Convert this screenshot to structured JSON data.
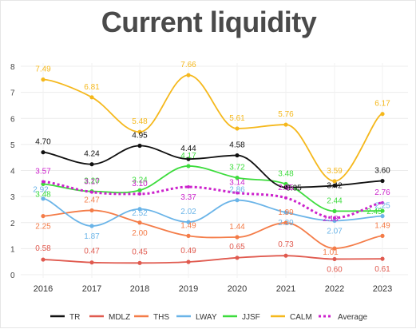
{
  "chart_data": {
    "type": "line",
    "title": "Current liquidity",
    "x": [
      "2016",
      "2017",
      "2018",
      "2019",
      "2020",
      "2021",
      "2022",
      "2023"
    ],
    "y_ticks": [
      "0",
      "1",
      "2",
      "3",
      "4",
      "5",
      "6",
      "7",
      "8"
    ],
    "ylim": [
      0,
      8
    ],
    "grid": true,
    "legend_position": "bottom",
    "series": [
      {
        "name": "TR",
        "color": "#111111",
        "style": "solid",
        "show_labels": true,
        "values": [
          4.7,
          4.24,
          4.95,
          4.44,
          4.58,
          3.35,
          3.42,
          3.6
        ],
        "labels": [
          "4.70",
          "4.24",
          "4.95",
          "4.44",
          "4.58",
          "3.35",
          "3.42",
          "3.60"
        ]
      },
      {
        "name": "MDLZ",
        "color": "#e05a4f",
        "style": "solid",
        "show_labels": true,
        "values": [
          0.58,
          0.47,
          0.45,
          0.49,
          0.65,
          0.73,
          0.6,
          0.61
        ],
        "labels": [
          "0.58",
          "0.47",
          "0.45",
          "0.49",
          "0.65",
          "0.73",
          "0.60",
          "0.61"
        ]
      },
      {
        "name": "THS",
        "color": "#f47c48",
        "style": "solid",
        "show_labels": true,
        "values": [
          2.25,
          2.47,
          2.0,
          1.49,
          1.44,
          1.99,
          1.01,
          1.49
        ],
        "labels": [
          "2.25",
          "2.47",
          "2.00",
          "1.49",
          "1.44",
          "1.99",
          "1.01",
          "1.49"
        ]
      },
      {
        "name": "LWAY",
        "color": "#6ab4e8",
        "style": "solid",
        "show_labels": true,
        "values": [
          2.92,
          1.87,
          2.52,
          2.02,
          2.86,
          2.39,
          2.07,
          2.25
        ],
        "labels": [
          "2.92",
          "1.87",
          "2.52",
          "2.02",
          "2.86",
          "2.39",
          "2.07",
          "2.25"
        ]
      },
      {
        "name": "JJSF",
        "color": "#3ddc3d",
        "style": "solid",
        "show_labels": true,
        "values": [
          3.48,
          3.2,
          3.24,
          4.17,
          3.72,
          3.48,
          2.44,
          2.45
        ],
        "labels": [
          "3.48",
          "3.20",
          "3.24",
          "4.17",
          "3.72",
          "3.48",
          "2.44",
          "2.45"
        ]
      },
      {
        "name": "CALM",
        "color": "#f5b81c",
        "style": "solid",
        "show_labels": true,
        "values": [
          7.49,
          6.81,
          5.48,
          7.66,
          5.61,
          5.76,
          3.59,
          6.17
        ],
        "labels": [
          "7.49",
          "6.81",
          "5.48",
          "7.66",
          "5.61",
          "5.76",
          "3.59",
          "6.17"
        ]
      },
      {
        "name": "Average",
        "color": "#cc22cc",
        "style": "dotted",
        "show_labels": true,
        "values": [
          3.57,
          3.17,
          3.1,
          3.37,
          3.14,
          2.95,
          2.18,
          2.76
        ],
        "labels": [
          "3.57",
          "3.17",
          "3.10",
          "3.37",
          "3.14",
          "2.95",
          "2.18",
          "2.76"
        ]
      }
    ]
  }
}
